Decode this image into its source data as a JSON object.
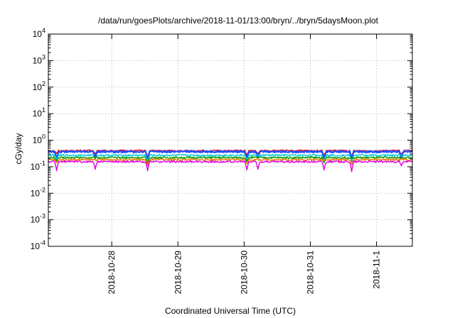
{
  "chart_data": {
    "type": "line",
    "title": "/data/run/goesPlots/archive/2018-11-01/13:00/bryn/../bryn/5daysMoon.plot",
    "xlabel": "Coordinated Universal Time (UTC)",
    "ylabel": "cGy/day",
    "y_scale": "log",
    "ylim": [
      0.0001,
      10000
    ],
    "y_tick_bases": [
      "10",
      "10",
      "10",
      "10",
      "10",
      "10",
      "10",
      "10",
      "10"
    ],
    "y_tick_exponents": [
      "-4",
      "-3",
      "-2",
      "-1",
      "0",
      "1",
      "2",
      "3",
      "4"
    ],
    "x_range": [
      "2018-10-27T01:00",
      "2018-11-01T13:00"
    ],
    "x_tick_labels": [
      "2018-10-28",
      "2018-10-29",
      "2018-10-30",
      "2018-10-31",
      "2018-11-1"
    ],
    "x_tick_dates": [
      "2018-10-28",
      "2018-10-29",
      "2018-10-30",
      "2018-10-31",
      "2018-11-01"
    ],
    "grid": true,
    "legend": "none",
    "series": [
      {
        "color": "#e8001e",
        "base": 0.4,
        "dips": [
          [
            "2018-10-27T04:00",
            0.32
          ],
          [
            "2018-10-27T18:00",
            0.3
          ],
          [
            "2018-10-28T13:00",
            0.22
          ],
          [
            "2018-10-30T01:00",
            0.27
          ],
          [
            "2018-10-30T05:00",
            0.3
          ],
          [
            "2018-10-31T05:00",
            0.25
          ],
          [
            "2018-10-31T15:00",
            0.24
          ],
          [
            "2018-11-01T09:00",
            0.28
          ]
        ]
      },
      {
        "color": "#2050ff",
        "base": 0.37,
        "dips": [
          [
            "2018-10-27T04:00",
            0.2
          ],
          [
            "2018-10-27T18:00",
            0.22
          ],
          [
            "2018-10-28T13:00",
            0.14
          ],
          [
            "2018-10-30T01:00",
            0.18
          ],
          [
            "2018-10-30T05:00",
            0.22
          ],
          [
            "2018-10-31T05:00",
            0.17
          ],
          [
            "2018-10-31T15:00",
            0.16
          ],
          [
            "2018-11-01T09:00",
            0.2
          ]
        ]
      },
      {
        "color": "#00c8d8",
        "base": 0.27,
        "dips": [
          [
            "2018-10-27T04:00",
            0.19
          ],
          [
            "2018-10-27T18:00",
            0.19
          ],
          [
            "2018-10-28T13:00",
            0.15
          ],
          [
            "2018-10-30T01:00",
            0.18
          ],
          [
            "2018-10-31T05:00",
            0.17
          ],
          [
            "2018-10-31T15:00",
            0.17
          ]
        ]
      },
      {
        "color": "#009a00",
        "base": 0.22,
        "dips": [
          [
            "2018-10-27T04:00",
            0.16
          ],
          [
            "2018-10-28T13:00",
            0.13
          ],
          [
            "2018-10-30T01:00",
            0.15
          ],
          [
            "2018-10-31T05:00",
            0.14
          ]
        ]
      },
      {
        "color": "#f07800",
        "base": 0.185,
        "dips": [
          [
            "2018-10-27T04:00",
            0.14
          ],
          [
            "2018-10-28T13:00",
            0.11
          ],
          [
            "2018-10-30T01:00",
            0.13
          ],
          [
            "2018-10-31T15:00",
            0.12
          ]
        ]
      },
      {
        "color": "#e000e0",
        "base": 0.155,
        "dips": [
          [
            "2018-10-27T04:00",
            0.07
          ],
          [
            "2018-10-27T18:00",
            0.08
          ],
          [
            "2018-10-28T13:00",
            0.07
          ],
          [
            "2018-10-30T01:00",
            0.075
          ],
          [
            "2018-10-30T05:00",
            0.08
          ],
          [
            "2018-10-31T05:00",
            0.075
          ],
          [
            "2018-10-31T15:00",
            0.065
          ],
          [
            "2018-11-01T09:00",
            0.11
          ]
        ]
      }
    ]
  }
}
